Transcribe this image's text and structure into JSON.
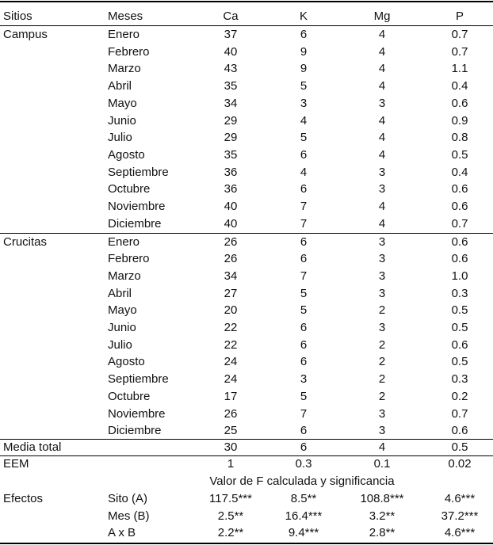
{
  "header": [
    "Sitios",
    "Meses",
    "Ca",
    "K",
    "Mg",
    "P"
  ],
  "groups": [
    {
      "site": "Campus",
      "rows": [
        [
          "Enero",
          "37",
          "6",
          "4",
          "0.7"
        ],
        [
          "Febrero",
          "40",
          "9",
          "4",
          "0.7"
        ],
        [
          "Marzo",
          "43",
          "9",
          "4",
          "1.1"
        ],
        [
          "Abril",
          "35",
          "5",
          "4",
          "0.4"
        ],
        [
          "Mayo",
          "34",
          "3",
          "3",
          "0.6"
        ],
        [
          "Junio",
          "29",
          "4",
          "4",
          "0.9"
        ],
        [
          "Julio",
          "29",
          "5",
          "4",
          "0.8"
        ],
        [
          "Agosto",
          "35",
          "6",
          "4",
          "0.5"
        ],
        [
          "Septiembre",
          "36",
          "4",
          "3",
          "0.4"
        ],
        [
          "Octubre",
          "36",
          "6",
          "3",
          "0.6"
        ],
        [
          "Noviembre",
          "40",
          "7",
          "4",
          "0.6"
        ],
        [
          "Diciembre",
          "40",
          "7",
          "4",
          "0.7"
        ]
      ]
    },
    {
      "site": "Crucitas",
      "rows": [
        [
          "Enero",
          "26",
          "6",
          "3",
          "0.6"
        ],
        [
          "Febrero",
          "26",
          "6",
          "3",
          "0.6"
        ],
        [
          "Marzo",
          "34",
          "7",
          "3",
          "1.0"
        ],
        [
          "Abril",
          "27",
          "5",
          "3",
          "0.3"
        ],
        [
          "Mayo",
          "20",
          "5",
          "2",
          "0.5"
        ],
        [
          "Junio",
          "22",
          "6",
          "3",
          "0.5"
        ],
        [
          "Julio",
          "22",
          "6",
          "2",
          "0.6"
        ],
        [
          "Agosto",
          "24",
          "6",
          "2",
          "0.5"
        ],
        [
          "Septiembre",
          "24",
          "3",
          "2",
          "0.3"
        ],
        [
          "Octubre",
          "17",
          "5",
          "2",
          "0.2"
        ],
        [
          "Noviembre",
          "26",
          "7",
          "3",
          "0.7"
        ],
        [
          "Diciembre",
          "25",
          "6",
          "3",
          "0.6"
        ]
      ]
    }
  ],
  "media_total": {
    "label": "Media total",
    "values": [
      "30",
      "6",
      "4",
      "0.5"
    ]
  },
  "eem": {
    "label": "EEM",
    "values": [
      "1",
      "0.3",
      "0.1",
      "0.02"
    ]
  },
  "f_caption": "Valor de F calculada y significancia",
  "effects": {
    "label": "Efectos",
    "rows": [
      [
        "Sito (A)",
        "117.5***",
        "8.5**",
        "108.8***",
        "4.6***"
      ],
      [
        "Mes (B)",
        "2.5**",
        "16.4***",
        "3.2**",
        "37.2***"
      ],
      [
        "A x B",
        "2.2**",
        "9.4***",
        "2.8**",
        "4.6***"
      ]
    ]
  }
}
